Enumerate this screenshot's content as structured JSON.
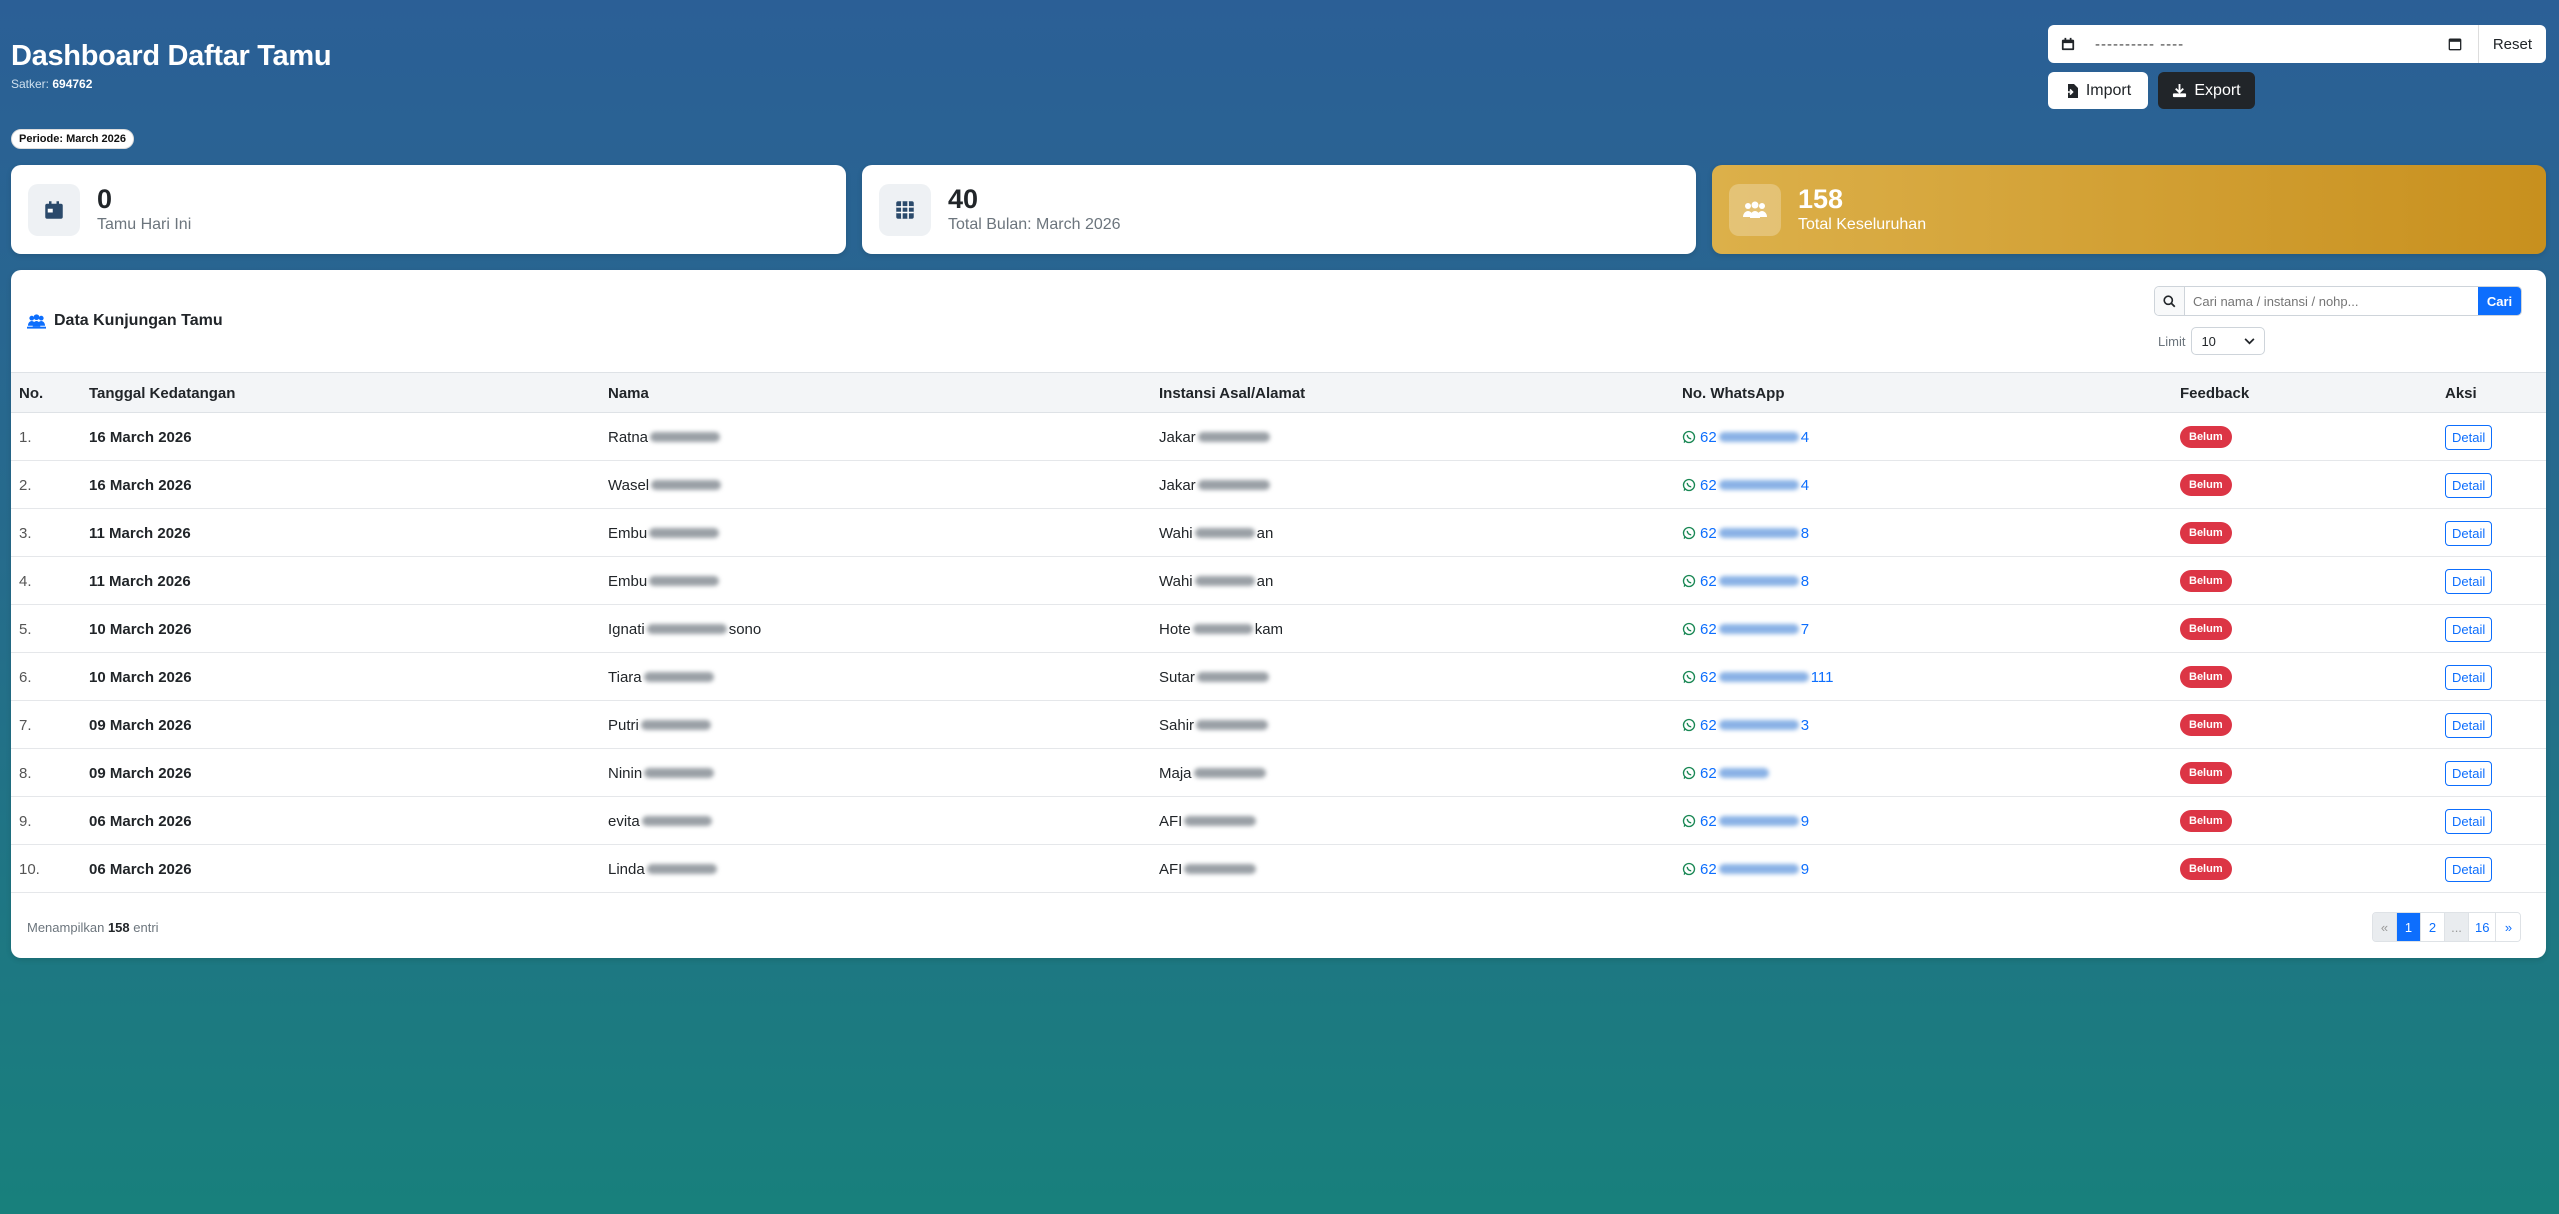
{
  "header": {
    "title": "Dashboard Daftar Tamu",
    "satker_label": "Satker:",
    "satker_value": "694762",
    "periode": "Periode: March 2026"
  },
  "controls": {
    "date_placeholder": "---------- ----",
    "reset_label": "Reset",
    "import_label": "Import",
    "export_label": "Export"
  },
  "stats": [
    {
      "value": "0",
      "label": "Tamu Hari Ini",
      "icon": "calendar-icon"
    },
    {
      "value": "40",
      "label": "Total Bulan: March 2026",
      "icon": "table-icon"
    },
    {
      "value": "158",
      "label": "Total Keseluruhan",
      "icon": "users-icon"
    }
  ],
  "panel": {
    "title": "Data Kunjungan Tamu",
    "search_placeholder": "Cari nama / instansi / nohp...",
    "search_button": "Cari",
    "limit_label": "Limit",
    "limit_value": "10"
  },
  "table": {
    "columns": [
      "No.",
      "Tanggal Kedatangan",
      "Nama",
      "Instansi Asal/Alamat",
      "No. WhatsApp",
      "Feedback",
      "Aksi"
    ],
    "rows": [
      {
        "no": "1.",
        "date": "16 March 2026",
        "name": "Ratna",
        "instansi": "Jakar",
        "wa": "62",
        "wa_end": "4",
        "feedback": "Belum",
        "action": "Detail"
      },
      {
        "no": "2.",
        "date": "16 March 2026",
        "name": "Wasel",
        "instansi": "Jakar",
        "wa": "62",
        "wa_end": "4",
        "feedback": "Belum",
        "action": "Detail"
      },
      {
        "no": "3.",
        "date": "11 March 2026",
        "name": "Embu",
        "instansi": "Wahi",
        "inst_end": "an",
        "wa": "62",
        "wa_end": "8",
        "feedback": "Belum",
        "action": "Detail"
      },
      {
        "no": "4.",
        "date": "11 March 2026",
        "name": "Embu",
        "instansi": "Wahi",
        "inst_end": "an",
        "wa": "62",
        "wa_end": "8",
        "feedback": "Belum",
        "action": "Detail"
      },
      {
        "no": "5.",
        "date": "10 March 2026",
        "name": "Ignati",
        "name_end": "sono",
        "instansi": "Hote",
        "inst_end": "kam",
        "wa": "62",
        "wa_end": "7",
        "feedback": "Belum",
        "action": "Detail"
      },
      {
        "no": "6.",
        "date": "10 March 2026",
        "name": "Tiara",
        "instansi": "Sutar",
        "wa": "62",
        "wa_end": "111",
        "feedback": "Belum",
        "action": "Detail"
      },
      {
        "no": "7.",
        "date": "09 March 2026",
        "name": "Putri",
        "instansi": "Sahir",
        "wa": "62",
        "wa_end": "3",
        "feedback": "Belum",
        "action": "Detail"
      },
      {
        "no": "8.",
        "date": "09 March 2026",
        "name": "Ninin",
        "instansi": "Maja",
        "wa": "62",
        "wa_end": "",
        "feedback": "Belum",
        "action": "Detail"
      },
      {
        "no": "9.",
        "date": "06 March 2026",
        "name": "evita",
        "instansi": "AFI",
        "wa": "62",
        "wa_end": "9",
        "feedback": "Belum",
        "action": "Detail"
      },
      {
        "no": "10.",
        "date": "06 March 2026",
        "name": "Linda",
        "instansi": "AFI",
        "wa": "62",
        "wa_end": "9",
        "feedback": "Belum",
        "action": "Detail"
      }
    ]
  },
  "footer": {
    "showing_prefix": "Menampilkan",
    "showing_count": "158",
    "showing_suffix": "entri",
    "pages": [
      "«",
      "1",
      "2",
      "...",
      "16",
      "»"
    ],
    "active_page": "1"
  },
  "colors": {
    "primary": "#0d6efd",
    "danger": "#dc3545",
    "gold": "#c8901e",
    "dark": "#212529"
  }
}
